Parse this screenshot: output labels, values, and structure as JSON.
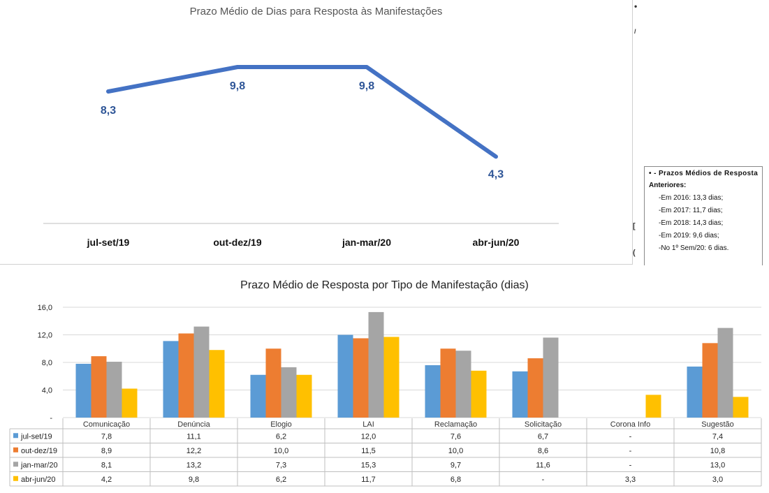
{
  "chart_data": [
    {
      "type": "line",
      "title": "Prazo Médio de Dias para Resposta às Manifestações",
      "categories": [
        "jul-set/19",
        "out-dez/19",
        "jan-mar/20",
        "abr-jun/20"
      ],
      "values": [
        8.3,
        9.8,
        9.8,
        4.3
      ],
      "data_labels": [
        "8,3",
        "9,8",
        "9,8",
        "4,3"
      ],
      "color": "#4472C4",
      "grid": false,
      "legend": "none"
    },
    {
      "type": "bar",
      "title": "Prazo Médio de Resposta por Tipo de Manifestação (dias)",
      "categories": [
        "Comunicação",
        "Denúncia",
        "Elogio",
        "LAI",
        "Reclamação",
        "Solicitação",
        "Corona Info",
        "Sugestão"
      ],
      "ylim": [
        0,
        16
      ],
      "yticks": [
        "16,0",
        "12,0",
        "8,0",
        "4,0",
        "-"
      ],
      "grid": true,
      "legend": "data-table",
      "series": [
        {
          "name": "jul-set/19",
          "color": "#5B9BD5",
          "values": [
            7.8,
            11.1,
            6.2,
            12.0,
            7.6,
            6.7,
            null,
            7.4
          ],
          "labels": [
            "7,8",
            "11,1",
            "6,2",
            "12,0",
            "7,6",
            "6,7",
            "-",
            "7,4"
          ]
        },
        {
          "name": "out-dez/19",
          "color": "#ED7D31",
          "values": [
            8.9,
            12.2,
            10.0,
            11.5,
            10.0,
            8.6,
            null,
            10.8
          ],
          "labels": [
            "8,9",
            "12,2",
            "10,0",
            "11,5",
            "10,0",
            "8,6",
            "-",
            "10,8"
          ]
        },
        {
          "name": "jan-mar/20",
          "color": "#A5A5A5",
          "values": [
            8.1,
            13.2,
            7.3,
            15.3,
            9.7,
            11.6,
            null,
            13.0
          ],
          "labels": [
            "8,1",
            "13,2",
            "7,3",
            "15,3",
            "9,7",
            "11,6",
            "-",
            "13,0"
          ]
        },
        {
          "name": "abr-jun/20",
          "color": "#FFC000",
          "values": [
            4.2,
            9.8,
            6.2,
            11.7,
            6.8,
            null,
            3.3,
            3.0
          ],
          "labels": [
            "4,2",
            "9,8",
            "6,2",
            "11,7",
            "6,8",
            "-",
            "3,3",
            "3,0"
          ]
        }
      ]
    }
  ],
  "note": {
    "heading": "•  -  Prazos  Médios  de  Resposta",
    "sub": "Anteriores:",
    "lines": [
      "-Em 2016: 13,3 dias;",
      "-Em 2017: 11,7 dias;",
      "-Em 2018: 14,3 dias;",
      "-Em 2019:  9,6 dias;",
      "-No 1º Sem/20: 6 dias."
    ]
  }
}
